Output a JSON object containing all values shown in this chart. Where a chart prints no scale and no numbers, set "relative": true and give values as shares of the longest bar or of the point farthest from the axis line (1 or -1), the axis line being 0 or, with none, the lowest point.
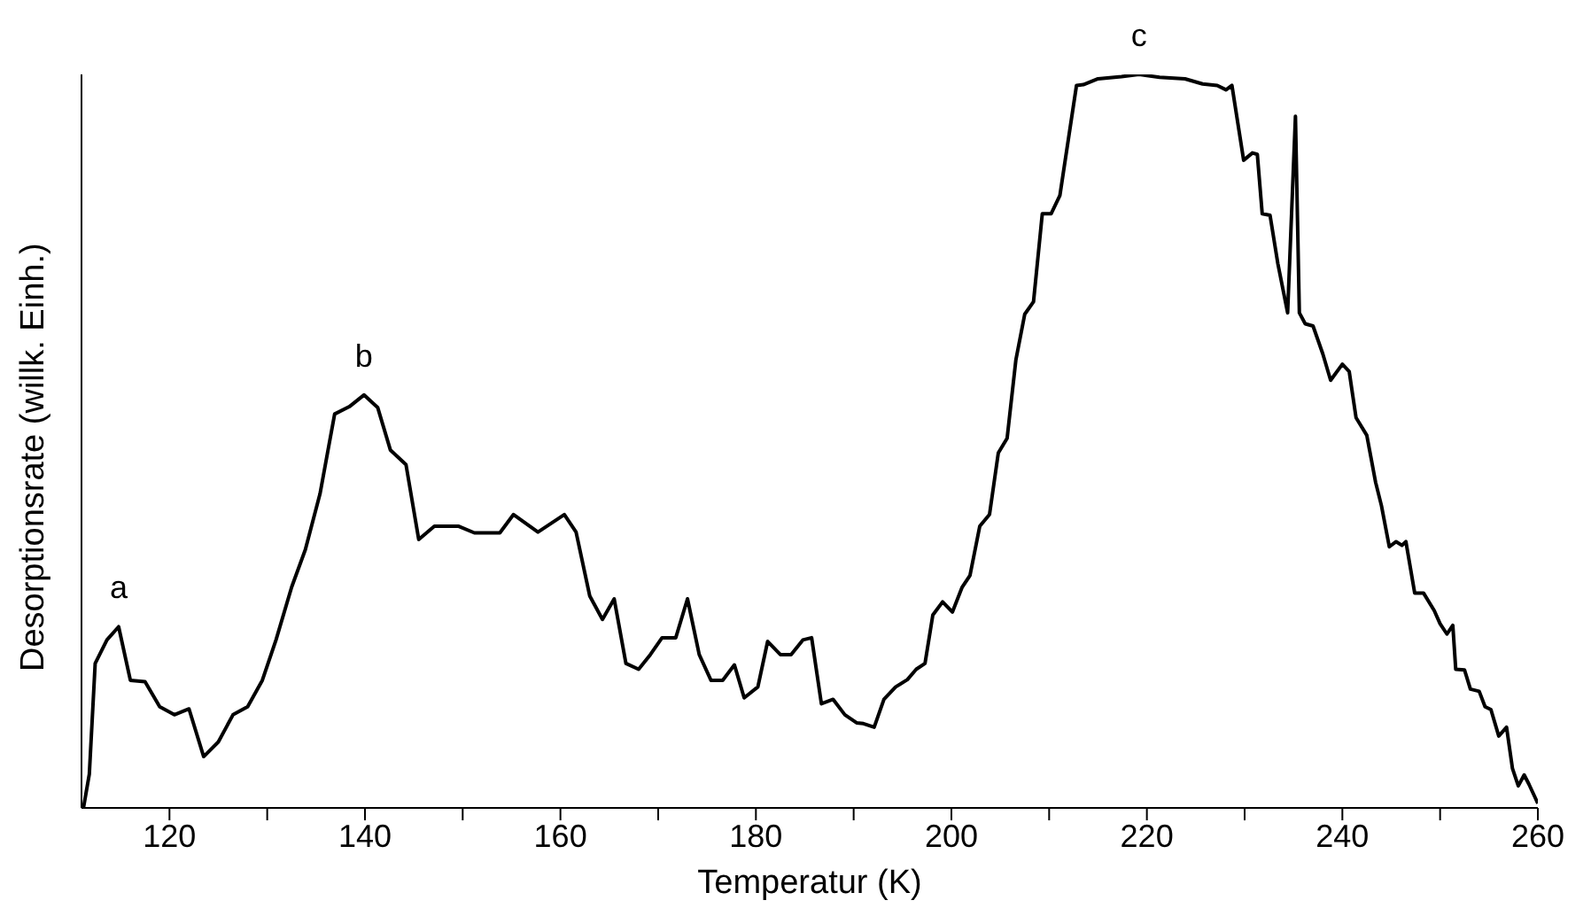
{
  "chart_data": {
    "type": "line",
    "relative": true,
    "xlabel": "Temperatur (K)",
    "ylabel": "Desorptionsrate (willk. Einh.)",
    "xlim": [
      111,
      260
    ],
    "xticks": [
      120,
      {
        "value": 130,
        "label": null
      },
      140,
      {
        "value": 150,
        "label": null
      },
      160,
      {
        "value": 170,
        "label": null
      },
      180,
      {
        "value": 190,
        "label": null
      },
      200,
      {
        "value": 210,
        "label": null
      },
      220,
      {
        "value": 230,
        "label": null
      },
      240,
      {
        "value": 250,
        "label": null
      },
      260
    ],
    "tick_labels": "x",
    "grid": false,
    "legend": false,
    "marker": "none",
    "line_style": "solid",
    "annotations": [
      {
        "text": "a",
        "x": 114.8,
        "y": 0.247
      },
      {
        "text": "b",
        "x": 139.9,
        "y": 0.563
      },
      {
        "text": "c",
        "x": 219.2,
        "y": 1
      }
    ],
    "x": [
      111.2,
      111.8,
      112.4,
      113.6,
      114.8,
      116.0,
      117.5,
      119.0,
      120.5,
      122.0,
      123.5,
      125.0,
      126.5,
      128.0,
      129.5,
      130.9,
      132.5,
      133.9,
      135.4,
      136.9,
      138.4,
      139.9,
      141.3,
      142.6,
      144.2,
      145.5,
      147.1,
      149.6,
      151.2,
      153.8,
      155.2,
      157.7,
      160.4,
      161.6,
      163.0,
      164.3,
      165.5,
      166.7,
      168.0,
      169.2,
      170.4,
      171.8,
      173.0,
      174.2,
      175.4,
      176.6,
      177.8,
      178.8,
      180.2,
      181.2,
      182.5,
      183.6,
      184.8,
      185.7,
      186.7,
      187.9,
      189.1,
      190.3,
      191.0,
      192.1,
      193.1,
      194.3,
      195.5,
      196.4,
      197.3,
      198.1,
      199.1,
      200.1,
      201.1,
      201.9,
      202.9,
      203.9,
      204.8,
      205.7,
      206.6,
      207.5,
      208.4,
      209.3,
      210.2,
      211.1,
      212.8,
      213.5,
      215.0,
      217.4,
      219.2,
      221.3,
      223.9,
      225.7,
      227.2,
      228.1,
      228.7,
      229.9,
      230.8,
      231.3,
      231.8,
      232.6,
      233.4,
      234.4,
      235.2,
      235.6,
      236.2,
      237.0,
      238.0,
      238.8,
      240.0,
      240.7,
      241.4,
      242.5,
      243.4,
      244.0,
      244.8,
      245.5,
      246.1,
      246.5,
      247.4,
      248.3,
      249.4,
      250.0,
      250.7,
      251.3,
      251.6,
      252.5,
      253.1,
      254.0,
      254.6,
      255.2,
      256.0,
      256.8,
      257.4,
      258.0,
      258.6,
      259.1,
      260
    ],
    "series": [
      {
        "color": "#000000",
        "values": [
          0,
          0.046,
          0.197,
          0.229,
          0.247,
          0.174,
          0.172,
          0.138,
          0.127,
          0.135,
          0.07,
          0.09,
          0.127,
          0.138,
          0.174,
          0.229,
          0.301,
          0.352,
          0.428,
          0.537,
          0.547,
          0.563,
          0.546,
          0.488,
          0.468,
          0.366,
          0.384,
          0.384,
          0.375,
          0.375,
          0.4,
          0.376,
          0.4,
          0.376,
          0.289,
          0.257,
          0.285,
          0.197,
          0.189,
          0.209,
          0.232,
          0.232,
          0.285,
          0.209,
          0.174,
          0.174,
          0.195,
          0.15,
          0.165,
          0.227,
          0.209,
          0.209,
          0.229,
          0.232,
          0.142,
          0.148,
          0.127,
          0.116,
          0.115,
          0.11,
          0.148,
          0.165,
          0.175,
          0.189,
          0.197,
          0.263,
          0.281,
          0.267,
          0.301,
          0.317,
          0.384,
          0.4,
          0.484,
          0.504,
          0.611,
          0.673,
          0.69,
          0.81,
          0.81,
          0.835,
          0.985,
          0.986,
          0.994,
          0.997,
          1,
          0.996,
          0.994,
          0.987,
          0.985,
          0.979,
          0.985,
          0.883,
          0.893,
          0.891,
          0.81,
          0.808,
          0.742,
          0.675,
          0.943,
          0.675,
          0.66,
          0.657,
          0.619,
          0.583,
          0.605,
          0.595,
          0.532,
          0.508,
          0.444,
          0.412,
          0.356,
          0.363,
          0.358,
          0.363,
          0.293,
          0.293,
          0.269,
          0.251,
          0.237,
          0.249,
          0.189,
          0.188,
          0.162,
          0.159,
          0.138,
          0.134,
          0.098,
          0.11,
          0.054,
          0.03,
          0.045,
          0.032,
          0.006
        ]
      }
    ]
  }
}
